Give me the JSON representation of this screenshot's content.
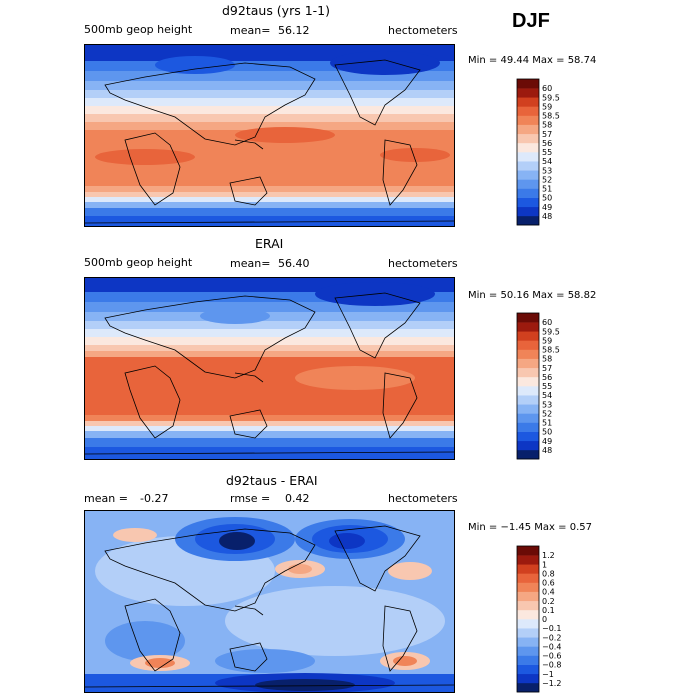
{
  "figure": {
    "season": "DJF"
  },
  "chart_data": [
    {
      "type": "heatmap",
      "title": "d92taus (yrs 1-1)",
      "variable": "500mb geop height",
      "mean_label": "mean=",
      "mean": "56.12",
      "units": "hectometers",
      "range_text": "Min =  49.44 Max =  58.74",
      "min": 49.44,
      "max": 58.74,
      "colorbar": {
        "levels": [
          "48",
          "49",
          "50",
          "51",
          "52",
          "53",
          "54",
          "55",
          "56",
          "57",
          "58",
          "58.5",
          "59",
          "59.5",
          "60"
        ],
        "colors": [
          "#08206b",
          "#0d36c4",
          "#1c58e0",
          "#3b7ae8",
          "#5e96ee",
          "#87b3f4",
          "#b3cff8",
          "#dde9fb",
          "#fbe8df",
          "#f8c7b0",
          "#f5a783",
          "#f08458",
          "#e8643b",
          "#d1401f",
          "#9c1a0e",
          "#6b0b06"
        ]
      }
    },
    {
      "type": "heatmap",
      "title": "ERAI",
      "variable": "500mb geop height",
      "mean_label": "mean=",
      "mean": "56.40",
      "units": "hectometers",
      "range_text": "Min =  50.16 Max =  58.82",
      "min": 50.16,
      "max": 58.82,
      "colorbar": {
        "levels": [
          "48",
          "49",
          "50",
          "51",
          "52",
          "53",
          "54",
          "55",
          "56",
          "57",
          "58",
          "58.5",
          "59",
          "59.5",
          "60"
        ],
        "colors": [
          "#08206b",
          "#0d36c4",
          "#1c58e0",
          "#3b7ae8",
          "#5e96ee",
          "#87b3f4",
          "#b3cff8",
          "#dde9fb",
          "#fbe8df",
          "#f8c7b0",
          "#f5a783",
          "#f08458",
          "#e8643b",
          "#d1401f",
          "#9c1a0e",
          "#6b0b06"
        ]
      }
    },
    {
      "type": "heatmap",
      "title": "d92taus - ERAI",
      "mean_label": "mean =",
      "mean": "-0.27",
      "rmse_label": "rmse =",
      "rmse": "0.42",
      "units": "hectometers",
      "range_text": "Min =  −1.45 Max =   0.57",
      "min": -1.45,
      "max": 0.57,
      "colorbar": {
        "levels": [
          "−1.2",
          "−1",
          "−0.8",
          "−0.6",
          "−0.4",
          "−0.2",
          "−0.1",
          "0",
          "0.1",
          "0.2",
          "0.4",
          "0.6",
          "0.8",
          "1",
          "1.2"
        ],
        "colors": [
          "#08206b",
          "#0d36c4",
          "#1c58e0",
          "#3b7ae8",
          "#5e96ee",
          "#87b3f4",
          "#b3cff8",
          "#dde9fb",
          "#fbe8df",
          "#f8c7b0",
          "#f5a783",
          "#f08458",
          "#e8643b",
          "#d1401f",
          "#9c1a0e",
          "#6b0b06"
        ]
      }
    }
  ]
}
